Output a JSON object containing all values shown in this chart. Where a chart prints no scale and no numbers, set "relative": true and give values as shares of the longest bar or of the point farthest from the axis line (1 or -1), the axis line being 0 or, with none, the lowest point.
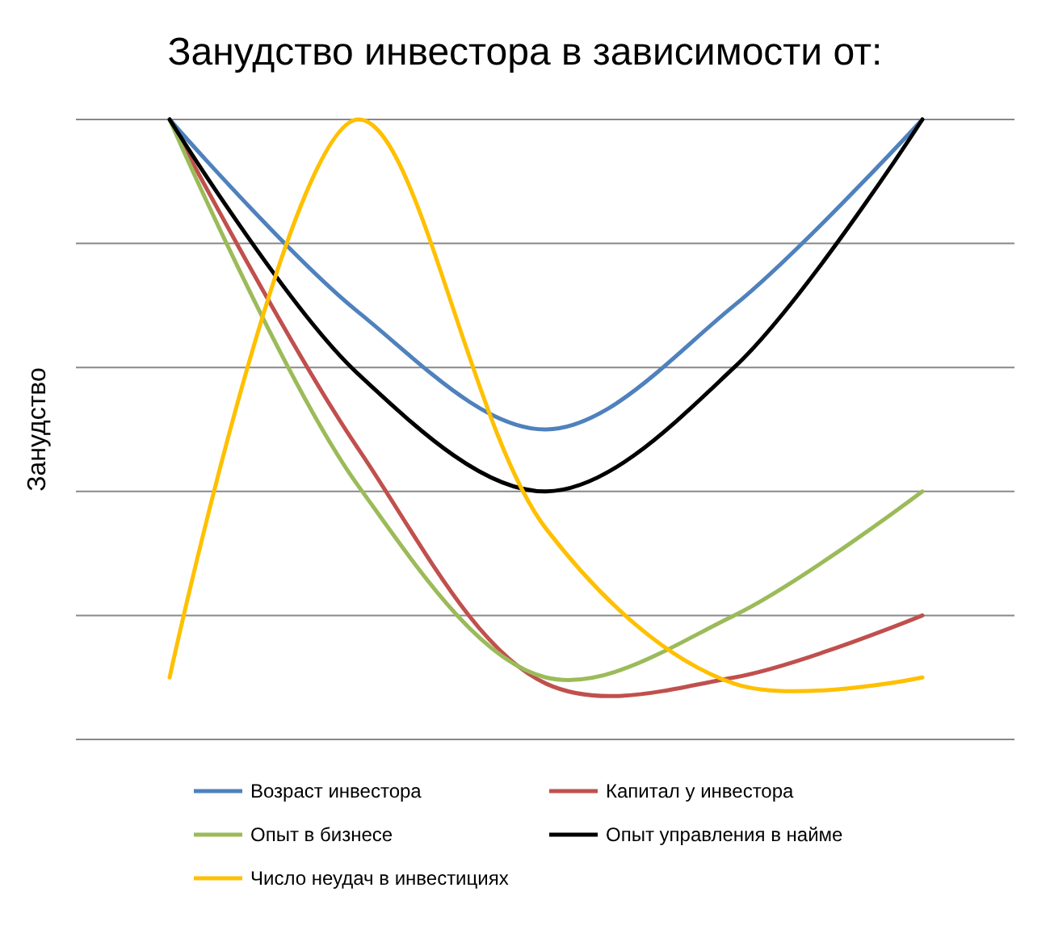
{
  "chart_data": {
    "type": "line",
    "title": "Занудство инвестора в зависимости от:",
    "ylabel": "Занудство",
    "relative": true,
    "categories": [
      null,
      null,
      null,
      null,
      null
    ],
    "grid": "y",
    "legend": "bottom",
    "marker": "none",
    "line_style": "solid",
    "series": [
      {
        "name": "Возраст инвестора",
        "color": "#4f81bd",
        "values": [
          1,
          0.69,
          0.5,
          0.7,
          1
        ]
      },
      {
        "name": "Капитал у инвестора",
        "color": "#c0504d",
        "values": [
          1,
          0.47,
          0.09,
          0.1,
          0.2
        ]
      },
      {
        "name": "Опыт в бизнесе",
        "color": "#9bbb59",
        "values": [
          1,
          0.41,
          0.1,
          0.2,
          0.4
        ]
      },
      {
        "name": "Опыт управления в найме",
        "color": "#000000",
        "values": [
          1,
          0.59,
          0.4,
          0.6,
          1
        ]
      },
      {
        "name": "Число неудач в инвестициях",
        "color": "#ffc000",
        "values": [
          0.1,
          1,
          0.34,
          0.09,
          0.1
        ]
      }
    ]
  }
}
